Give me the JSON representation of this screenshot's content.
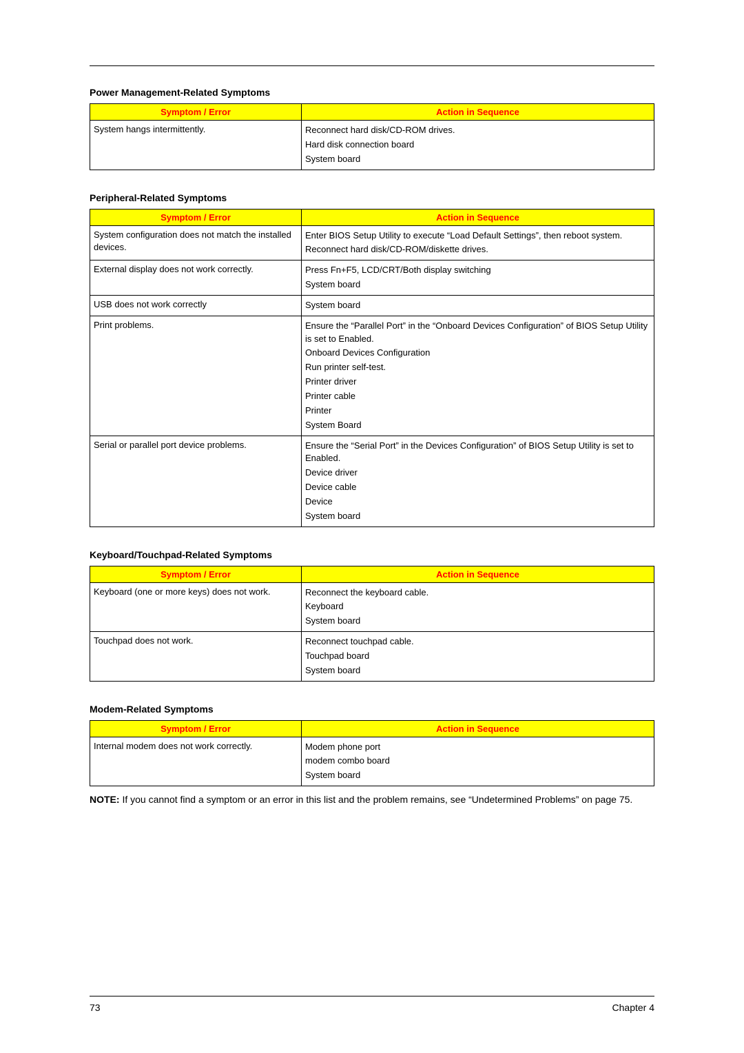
{
  "colors": {
    "header_bg": "#ffff00",
    "header_fg": "#ff0000",
    "rule": "#000000",
    "text": "#000000"
  },
  "column_headers": {
    "col1": "Symptom / Error",
    "col2": "Action in Sequence"
  },
  "sections": {
    "power": {
      "title": "Power Management-Related Symptoms",
      "rows": [
        {
          "symptom": "System hangs intermittently.",
          "actions": [
            "Reconnect hard disk/CD-ROM drives.",
            "Hard disk connection board",
            "System board"
          ]
        }
      ]
    },
    "peripheral": {
      "title": "Peripheral-Related Symptoms",
      "rows": [
        {
          "symptom": "System configuration does not match the installed devices.",
          "actions": [
            "Enter BIOS Setup Utility to execute “Load Default Settings”, then reboot system.",
            "Reconnect hard disk/CD-ROM/diskette drives."
          ]
        },
        {
          "symptom": "External display does not work correctly.",
          "actions": [
            "Press Fn+F5, LCD/CRT/Both display switching",
            "System board"
          ]
        },
        {
          "symptom": "USB does not work correctly",
          "actions": [
            "System board"
          ]
        },
        {
          "symptom": "Print problems.",
          "actions": [
            "Ensure the “Parallel Port” in the “Onboard Devices Configuration” of BIOS Setup Utility is set to Enabled.",
            "Onboard Devices Configuration",
            "Run printer self-test.",
            "Printer driver",
            "Printer cable",
            "Printer",
            "System Board"
          ]
        },
        {
          "symptom": "Serial or parallel port device problems.",
          "actions": [
            "Ensure the “Serial Port” in the Devices Configuration” of BIOS Setup Utility is set to Enabled.",
            "Device driver",
            "Device cable",
            "Device",
            "System board"
          ]
        }
      ]
    },
    "keyboard": {
      "title": "Keyboard/Touchpad-Related Symptoms",
      "rows": [
        {
          "symptom": "Keyboard (one or more keys) does not work.",
          "actions": [
            "Reconnect the keyboard cable.",
            "Keyboard",
            "System board"
          ]
        },
        {
          "symptom": "Touchpad does not work.",
          "actions": [
            "Reconnect touchpad cable.",
            "Touchpad board",
            "System board"
          ]
        }
      ]
    },
    "modem": {
      "title": "Modem-Related Symptoms",
      "rows": [
        {
          "symptom": "Internal modem does not work correctly.",
          "actions": [
            "Modem phone port",
            "modem combo board",
            "System board"
          ]
        }
      ]
    }
  },
  "note": {
    "label": "NOTE:",
    "text": "If you cannot find a symptom or an error in this list and the problem remains, see “Undetermined Problems” on page 75."
  },
  "footer": {
    "page_number": "73",
    "chapter": "Chapter 4"
  }
}
